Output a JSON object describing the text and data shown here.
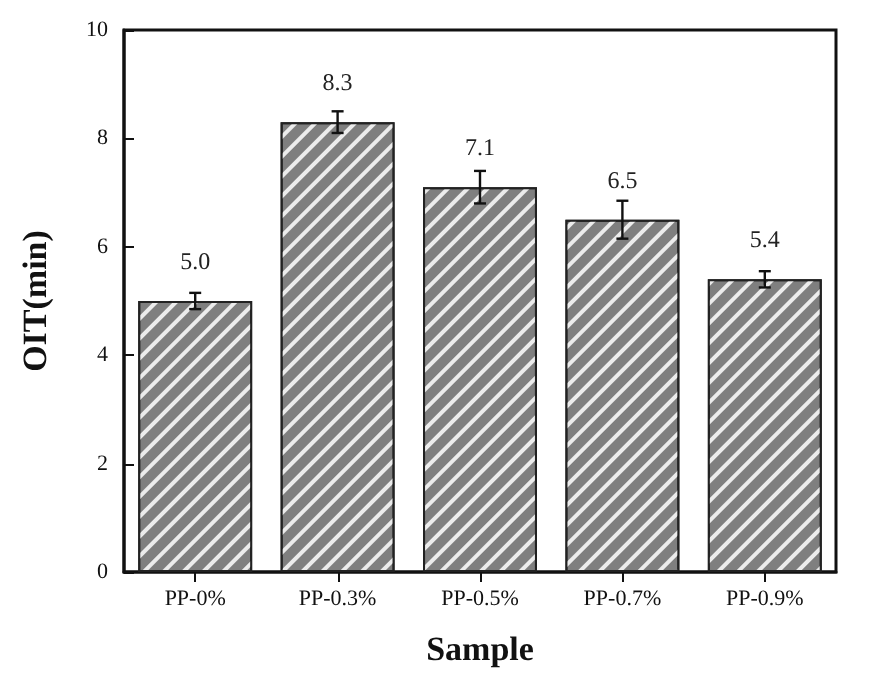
{
  "chart_data": {
    "type": "bar",
    "xlabel": "Sample",
    "ylabel": "OIT(min)",
    "categories": [
      "PP-0%",
      "PP-0.3%",
      "PP-0.5%",
      "PP-0.7%",
      "PP-0.9%"
    ],
    "values": [
      5.0,
      8.3,
      7.1,
      6.5,
      5.4
    ],
    "value_labels": [
      "5.0",
      "8.3",
      "7.1",
      "6.5",
      "5.4"
    ],
    "errors": [
      0.15,
      0.2,
      0.3,
      0.35,
      0.15
    ],
    "color": "#7f7f7f",
    "ylim": [
      0,
      10
    ],
    "yticks": [
      0,
      2,
      4,
      6,
      8,
      10
    ],
    "grid": false
  }
}
